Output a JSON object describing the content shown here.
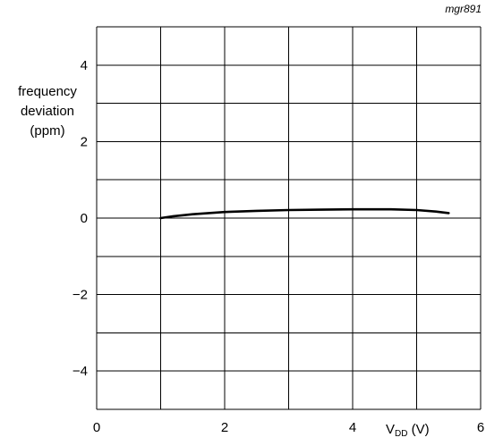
{
  "figure_code": "mgr891",
  "chart_data": {
    "type": "line",
    "ylabel_lines": [
      "frequency",
      "deviation",
      "(ppm)"
    ],
    "xlabel_main": "V",
    "xlabel_sub": "DD",
    "xlabel_unit": " (V)",
    "xlim": [
      0,
      6
    ],
    "ylim": [
      -5,
      5
    ],
    "x_ticks": [
      0,
      2,
      4,
      6
    ],
    "y_ticks": [
      4,
      2,
      0,
      -2,
      -4
    ],
    "x_tick_labels": [
      "0",
      "2",
      "4",
      "6"
    ],
    "y_tick_labels": [
      "4",
      "2",
      "0",
      "−2",
      "−4"
    ],
    "grid": true,
    "series": [
      {
        "color": "#000000",
        "x": [
          1.0,
          1.2,
          1.5,
          2.0,
          2.5,
          3.0,
          3.5,
          4.0,
          4.3,
          4.6,
          5.0,
          5.3,
          5.5
        ],
        "y": [
          0.0,
          0.05,
          0.1,
          0.16,
          0.19,
          0.21,
          0.22,
          0.23,
          0.23,
          0.23,
          0.21,
          0.17,
          0.13
        ]
      }
    ]
  }
}
